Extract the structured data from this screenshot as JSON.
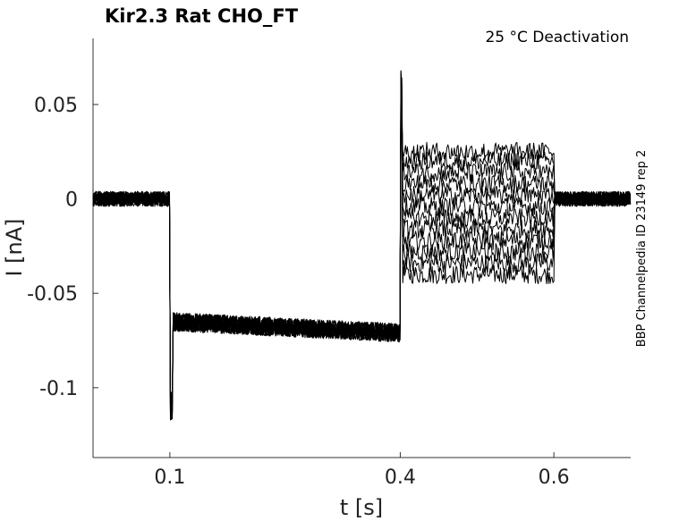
{
  "chart_data": {
    "type": "line",
    "title": "Kir2.3  Rat  CHO_FT",
    "subtitle": "25 °C  Deactivation",
    "xlabel": "t [s]",
    "ylabel": "I [nA]",
    "side_note": "BBP Channelpedia ID 23149 rep 2",
    "xlim": [
      0.0,
      0.7
    ],
    "ylim": [
      -0.137,
      0.085
    ],
    "x_ticks": [
      {
        "value": 0.1,
        "label": "0.1"
      },
      {
        "value": 0.4,
        "label": "0.4"
      },
      {
        "value": 0.6,
        "label": "0.6"
      }
    ],
    "y_ticks": [
      {
        "value": 0.05,
        "label": "0.05"
      },
      {
        "value": 0,
        "label": "0"
      },
      {
        "value": -0.05,
        "label": "-0.05"
      },
      {
        "value": -0.1,
        "label": "-0.1"
      }
    ],
    "grid": false,
    "protocol": {
      "hold_end": 0.1,
      "step1_end": 0.4,
      "step2_end": 0.6,
      "baseline_current": 0.0,
      "step1_current_start": -0.065,
      "step1_current_end": -0.071,
      "step1_peak": -0.118,
      "tail_peak": 0.068
    },
    "series_step2_levels": [
      -0.04,
      -0.034,
      -0.028,
      -0.022,
      -0.016,
      -0.01,
      -0.004,
      0.002,
      0.008,
      0.014,
      0.02,
      0.025
    ],
    "colors": {
      "trace": "#000000",
      "axis": "#333333"
    }
  }
}
